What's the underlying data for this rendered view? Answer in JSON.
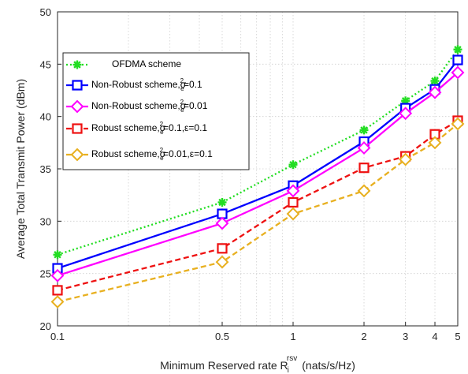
{
  "chart_data": {
    "type": "line",
    "xlabel": "Minimum Reserved rate R",
    "xlabel_sub": "i",
    "xlabel_sup": "rsv",
    "xlabel_suffix": "(nats/s/Hz)",
    "ylabel": "Average Total Transmit Power (dBm)",
    "xscale": "log",
    "xlim": [
      0.1,
      5
    ],
    "ylim": [
      20,
      50
    ],
    "x_ticks": [
      0.1,
      0.5,
      1,
      2,
      3,
      4,
      5
    ],
    "x_tick_labels": [
      "0.1",
      "0.5",
      "1",
      "2",
      "3",
      "4",
      "5"
    ],
    "y_ticks": [
      20,
      25,
      30,
      35,
      40,
      45,
      50
    ],
    "y_tick_labels": [
      "20",
      "25",
      "30",
      "35",
      "40",
      "45",
      "50"
    ],
    "grid": true,
    "legend_position": "top-left",
    "x": [
      0.1,
      0.5,
      1,
      2,
      3,
      4,
      5
    ],
    "series": [
      {
        "name": "OFDMA scheme",
        "color": "#22dd22",
        "dash": "dotted",
        "marker": "asterisk",
        "values": [
          26.8,
          31.8,
          35.4,
          38.7,
          41.5,
          43.4,
          46.4
        ]
      },
      {
        "name": "Non-Robust scheme,σe2=0.1",
        "color": "#0000ff",
        "dash": "solid",
        "marker": "square",
        "values": [
          25.5,
          30.7,
          33.4,
          37.6,
          40.8,
          42.6,
          45.4
        ]
      },
      {
        "name": "Non-Robust scheme,σe2=0.01",
        "color": "#ff00ff",
        "dash": "solid",
        "marker": "diamond",
        "values": [
          24.8,
          29.8,
          32.9,
          37.0,
          40.3,
          42.3,
          44.2
        ]
      },
      {
        "name": "Robust scheme,σe2=0.1,ε=0.1",
        "color": "#ee1111",
        "dash": "dashed",
        "marker": "square",
        "values": [
          23.4,
          27.4,
          31.8,
          35.1,
          36.2,
          38.3,
          39.6
        ]
      },
      {
        "name": "Robust scheme,σe2=0.01,ε=0.1",
        "color": "#e8b020",
        "dash": "dashed",
        "marker": "diamond",
        "values": [
          22.3,
          26.1,
          30.7,
          32.9,
          35.9,
          37.5,
          39.3
        ]
      }
    ]
  },
  "legend": {
    "entries": [
      {
        "prefix": "OFDMA scheme",
        "sigma": "",
        "sub": "",
        "sup": "",
        "suffix": ""
      },
      {
        "prefix": "Non-Robust scheme,",
        "sigma": "σ",
        "sub": "e",
        "sup": "2",
        "suffix": "=0.1"
      },
      {
        "prefix": "Non-Robust scheme,",
        "sigma": "σ",
        "sub": "e",
        "sup": "2",
        "suffix": "=0.01"
      },
      {
        "prefix": "Robust scheme,",
        "sigma": "σ",
        "sub": "e",
        "sup": "2",
        "suffix": "=0.1,ε=0.1"
      },
      {
        "prefix": "Robust scheme,",
        "sigma": "σ",
        "sub": "e",
        "sup": "2",
        "suffix": "=0.01,ε=0.1"
      }
    ]
  }
}
